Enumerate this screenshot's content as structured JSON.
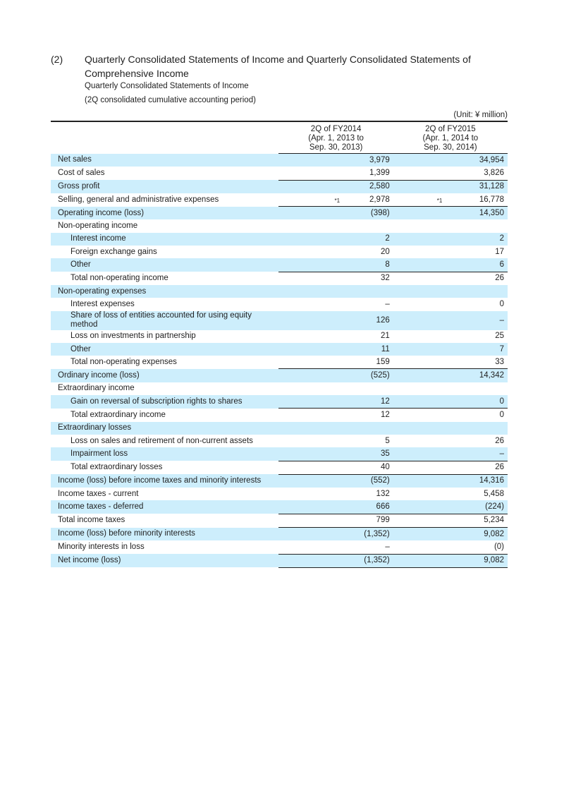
{
  "heading": {
    "number": "(2)",
    "title": "Quarterly Consolidated Statements of Income and Quarterly Consolidated Statements of Comprehensive Income"
  },
  "subtitle": "Quarterly Consolidated Statements of Income",
  "period": "(2Q consolidated cumulative accounting period)",
  "unit": "(Unit: ¥ million)",
  "columns": [
    {
      "line1": "2Q of FY2014",
      "line2": "(Apr. 1, 2013 to",
      "line3": "Sep. 30, 2013)"
    },
    {
      "line1": "2Q of FY2015",
      "line2": "(Apr. 1, 2014 to",
      "line3": "Sep. 30, 2014)"
    }
  ],
  "footnote_mark": "*1",
  "rows": [
    {
      "label": "Net sales",
      "v1": "3,979",
      "v2": "34,954"
    },
    {
      "label": "Cost of sales",
      "v1": "1,399",
      "v2": "3,826"
    },
    {
      "label": "Gross profit",
      "v1": "2,580",
      "v2": "31,128"
    },
    {
      "label": "Selling, general and administrative expenses",
      "v1": "2,978",
      "v2": "16,778"
    },
    {
      "label": "Operating income (loss)",
      "v1": "(398)",
      "v2": "14,350"
    },
    {
      "label": "Non-operating income",
      "v1": "",
      "v2": ""
    },
    {
      "label": "Interest income",
      "v1": "2",
      "v2": "2"
    },
    {
      "label": "Foreign exchange gains",
      "v1": "20",
      "v2": "17"
    },
    {
      "label": "Other",
      "v1": "8",
      "v2": "6"
    },
    {
      "label": "Total non-operating income",
      "v1": "32",
      "v2": "26"
    },
    {
      "label": "Non-operating expenses",
      "v1": "",
      "v2": ""
    },
    {
      "label": "Interest expenses",
      "v1": "–",
      "v2": "0"
    },
    {
      "label": "Share of loss of entities accounted for using equity method",
      "v1": "126",
      "v2": "–"
    },
    {
      "label": "Loss on investments in partnership",
      "v1": "21",
      "v2": "25"
    },
    {
      "label": "Other",
      "v1": "11",
      "v2": "7"
    },
    {
      "label": "Total non-operating expenses",
      "v1": "159",
      "v2": "33"
    },
    {
      "label": "Ordinary income (loss)",
      "v1": "(525)",
      "v2": "14,342"
    },
    {
      "label": "Extraordinary income",
      "v1": "",
      "v2": ""
    },
    {
      "label": "Gain on reversal of subscription rights to shares",
      "v1": "12",
      "v2": "0"
    },
    {
      "label": "Total extraordinary income",
      "v1": "12",
      "v2": "0"
    },
    {
      "label": "Extraordinary losses",
      "v1": "",
      "v2": ""
    },
    {
      "label": "Loss on sales and retirement of non-current assets",
      "v1": "5",
      "v2": "26"
    },
    {
      "label": "Impairment loss",
      "v1": "35",
      "v2": "–"
    },
    {
      "label": "Total extraordinary losses",
      "v1": "40",
      "v2": "26"
    },
    {
      "label": "Income (loss) before income taxes and minority interests",
      "v1": "(552)",
      "v2": "14,316"
    },
    {
      "label": "Income taxes - current",
      "v1": "132",
      "v2": "5,458"
    },
    {
      "label": "Income taxes - deferred",
      "v1": "666",
      "v2": "(224)"
    },
    {
      "label": "Total income taxes",
      "v1": "799",
      "v2": "5,234"
    },
    {
      "label": "Income (loss) before minority interests",
      "v1": "(1,352)",
      "v2": "9,082"
    },
    {
      "label": "Minority interests in loss",
      "v1": "–",
      "v2": "(0)"
    },
    {
      "label": "Net income (loss)",
      "v1": "(1,352)",
      "v2": "9,082"
    }
  ]
}
